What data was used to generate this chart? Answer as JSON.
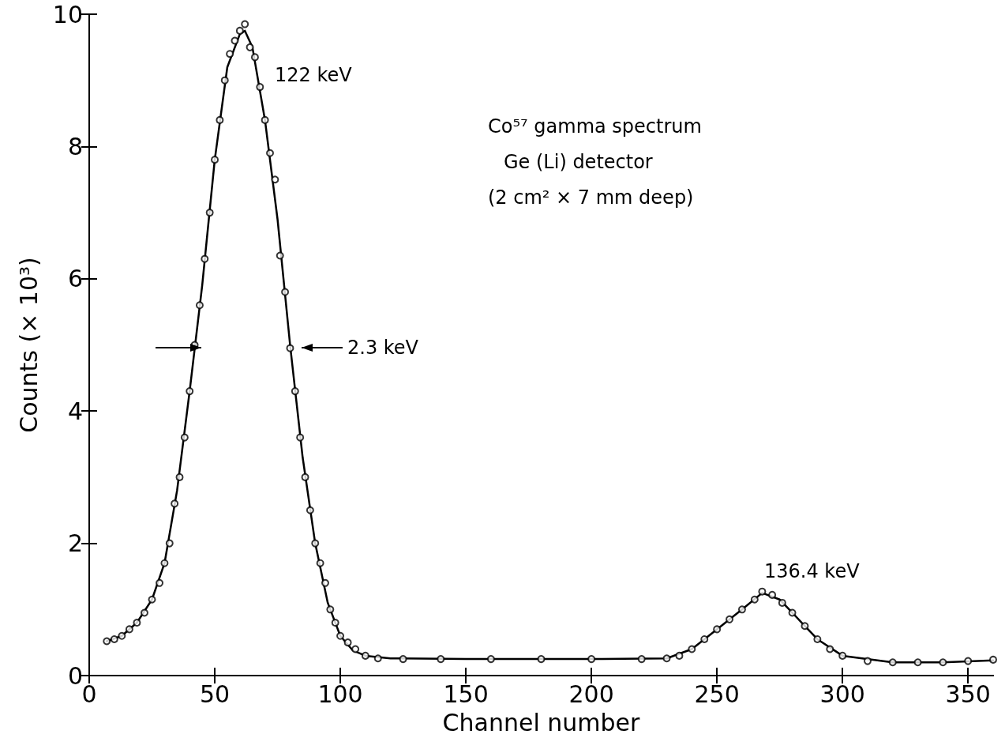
{
  "chart_data": {
    "type": "scatter",
    "xlabel": "Channel number",
    "ylabel": "Counts (× 10³)",
    "xlim": [
      0,
      360
    ],
    "xticks": [
      0,
      50,
      100,
      150,
      200,
      250,
      300,
      350
    ],
    "ylim": [
      0,
      10
    ],
    "yticks": [
      0,
      2,
      4,
      6,
      8,
      10
    ],
    "grid": false,
    "marker": "circle",
    "annotations": [
      "122 keV",
      "2.3 keV",
      "136.4 keV",
      "Co⁵⁷ gamma spectrum",
      "Ge (Li) detector",
      "(2 cm² × 7 mm deep)"
    ],
    "series": [
      {
        "color": "#000000",
        "x": [
          7,
          10,
          13,
          16,
          19,
          22,
          25,
          28,
          30,
          32,
          34,
          36,
          38,
          40,
          42,
          44,
          46,
          48,
          50,
          52,
          54,
          56,
          58,
          60,
          62,
          64,
          66,
          68,
          70,
          72,
          74,
          76,
          78,
          80,
          82,
          84,
          86,
          88,
          90,
          92,
          94,
          96,
          98,
          100,
          103,
          106,
          110,
          115,
          125,
          140,
          160,
          180,
          200,
          220,
          230,
          235,
          240,
          245,
          250,
          255,
          260,
          265,
          268,
          272,
          276,
          280,
          285,
          290,
          295,
          300,
          310,
          320,
          330,
          340,
          350,
          360
        ],
        "values": [
          0.52,
          0.55,
          0.6,
          0.7,
          0.8,
          0.95,
          1.15,
          1.4,
          1.7,
          2.0,
          2.6,
          3.0,
          3.6,
          4.3,
          5.0,
          5.6,
          6.3,
          7.0,
          7.8,
          8.4,
          9.0,
          9.4,
          9.6,
          9.75,
          9.85,
          9.5,
          9.35,
          8.9,
          8.4,
          7.9,
          7.5,
          6.35,
          5.8,
          4.95,
          4.3,
          3.6,
          3.0,
          2.5,
          2.0,
          1.7,
          1.4,
          1.0,
          0.8,
          0.6,
          0.5,
          0.4,
          0.3,
          0.26,
          0.25,
          0.25,
          0.25,
          0.25,
          0.25,
          0.25,
          0.26,
          0.3,
          0.4,
          0.55,
          0.7,
          0.85,
          1.0,
          1.15,
          1.27,
          1.22,
          1.1,
          0.95,
          0.75,
          0.55,
          0.4,
          0.3,
          0.22,
          0.2,
          0.2,
          0.2,
          0.22,
          0.24
        ]
      },
      {
        "type": "line",
        "marker": "none",
        "line_style": "solid",
        "color": "#000000",
        "x": [
          7,
          13,
          19,
          25,
          30,
          35,
          40,
          45,
          50,
          55,
          60,
          62,
          65,
          70,
          75,
          80,
          85,
          90,
          95,
          100,
          105,
          110,
          120,
          150,
          200,
          230,
          240,
          250,
          260,
          268,
          275,
          280,
          290,
          300,
          320,
          340,
          360
        ],
        "values": [
          0.52,
          0.6,
          0.8,
          1.15,
          1.7,
          2.8,
          4.3,
          5.9,
          7.8,
          9.2,
          9.7,
          9.75,
          9.5,
          8.4,
          6.9,
          5.0,
          3.3,
          2.0,
          1.1,
          0.6,
          0.38,
          0.3,
          0.26,
          0.25,
          0.25,
          0.26,
          0.4,
          0.7,
          1.0,
          1.25,
          1.15,
          0.95,
          0.55,
          0.3,
          0.2,
          0.2,
          0.23
        ]
      }
    ]
  }
}
